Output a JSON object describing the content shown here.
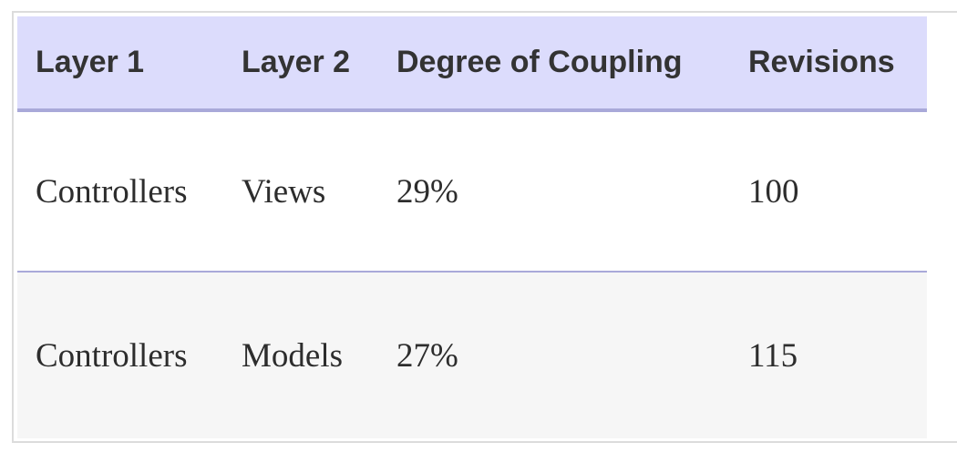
{
  "table": {
    "headers": [
      "Layer 1",
      "Layer 2",
      "Degree of Coupling",
      "Revisions"
    ],
    "rows": [
      [
        "Controllers",
        "Views",
        "29%",
        "100"
      ],
      [
        "Controllers",
        "Models",
        "27%",
        "115"
      ]
    ]
  },
  "colors": {
    "header_background": "#dcdcfc",
    "header_rule": "#a9a9d9",
    "row_divider": "#a9a9d9",
    "alt_row_background": "#f6f6f6"
  }
}
